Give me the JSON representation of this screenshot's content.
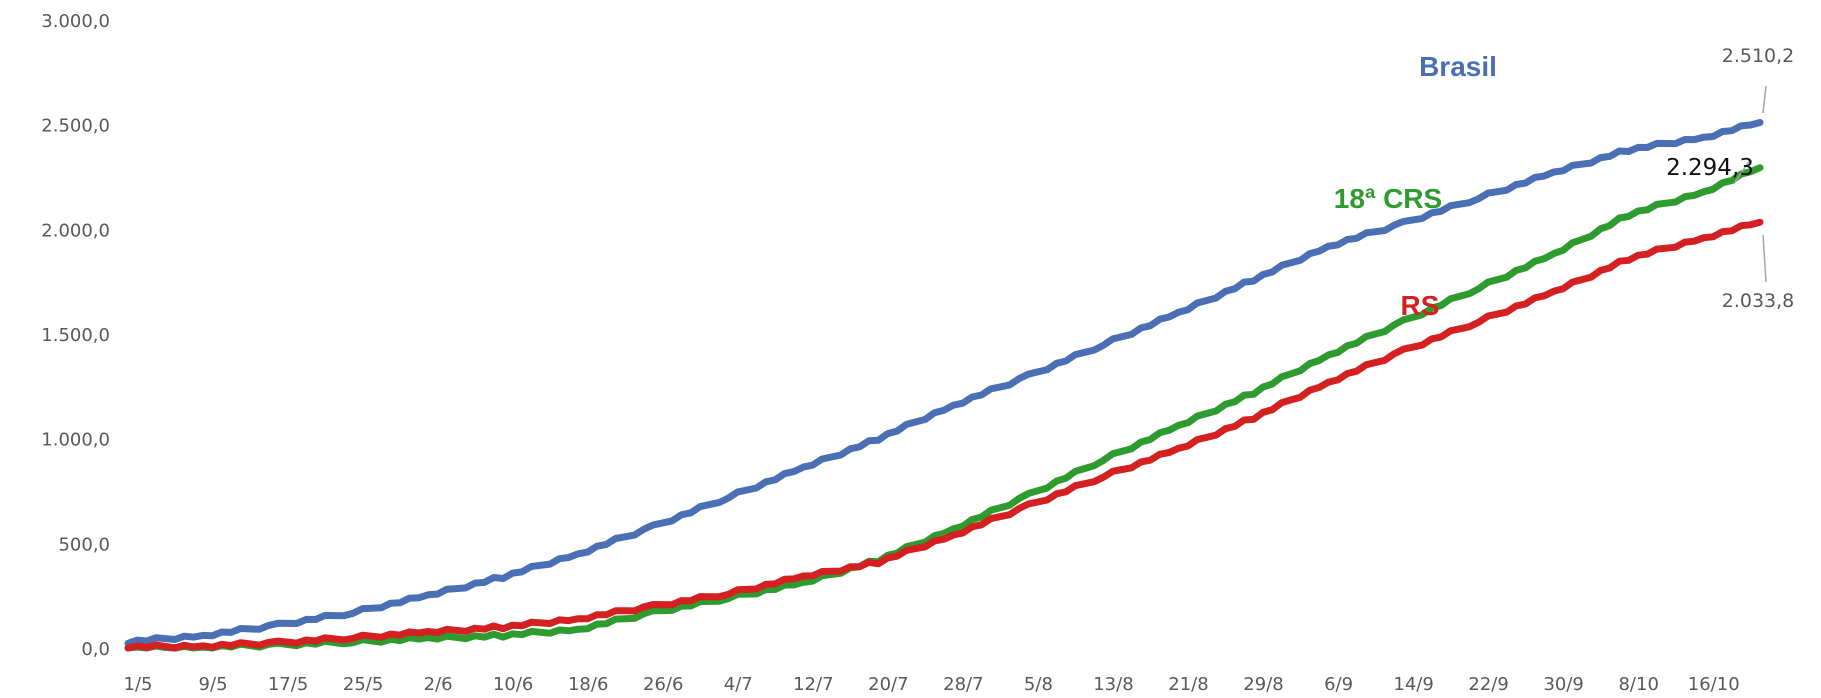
{
  "chart_data": {
    "type": "line",
    "title": "",
    "xlabel": "",
    "ylabel": "",
    "ylim": [
      0,
      3000
    ],
    "y_ticks": [
      "0,0",
      "500,0",
      "1.000,0",
      "1.500,0",
      "2.000,0",
      "2.500,0",
      "3.000,0"
    ],
    "x_ticks": [
      "1/5",
      "9/5",
      "17/5",
      "25/5",
      "2/6",
      "10/6",
      "18/6",
      "26/6",
      "4/7",
      "12/7",
      "20/7",
      "28/7",
      "5/8",
      "13/8",
      "21/8",
      "29/8",
      "6/9",
      "14/9",
      "22/9",
      "30/9",
      "8/10",
      "16/10"
    ],
    "x_days_after_start": [
      0,
      8,
      16,
      24,
      32,
      40,
      48,
      56,
      64,
      72,
      80,
      88,
      96,
      104,
      112,
      120,
      128,
      136,
      144,
      152,
      160,
      168
    ],
    "grid": false,
    "legend": "none",
    "series": [
      {
        "name": "Brasil",
        "color": "#4a6fb5",
        "end_label": "2.510,2",
        "points": [
          [
            0,
            30
          ],
          [
            8,
            60
          ],
          [
            16,
            110
          ],
          [
            24,
            170
          ],
          [
            32,
            250
          ],
          [
            40,
            340
          ],
          [
            48,
            450
          ],
          [
            56,
            580
          ],
          [
            64,
            720
          ],
          [
            72,
            860
          ],
          [
            80,
            1000
          ],
          [
            88,
            1160
          ],
          [
            96,
            1300
          ],
          [
            104,
            1450
          ],
          [
            112,
            1600
          ],
          [
            120,
            1760
          ],
          [
            128,
            1920
          ],
          [
            136,
            2030
          ],
          [
            144,
            2150
          ],
          [
            152,
            2270
          ],
          [
            160,
            2380
          ],
          [
            168,
            2440
          ],
          [
            174,
            2510.2
          ]
        ]
      },
      {
        "name": "18ª CRS",
        "color": "#2e9b2e",
        "end_label": "2.294,3",
        "points": [
          [
            0,
            0
          ],
          [
            8,
            5
          ],
          [
            16,
            15
          ],
          [
            24,
            30
          ],
          [
            32,
            45
          ],
          [
            40,
            60
          ],
          [
            48,
            90
          ],
          [
            56,
            170
          ],
          [
            64,
            240
          ],
          [
            72,
            310
          ],
          [
            80,
            420
          ],
          [
            88,
            570
          ],
          [
            96,
            730
          ],
          [
            104,
            900
          ],
          [
            112,
            1060
          ],
          [
            120,
            1220
          ],
          [
            128,
            1400
          ],
          [
            136,
            1560
          ],
          [
            144,
            1720
          ],
          [
            152,
            1880
          ],
          [
            160,
            2070
          ],
          [
            168,
            2180
          ],
          [
            174,
            2294.3
          ]
        ]
      },
      {
        "name": "RS",
        "color": "#d42020",
        "end_label": "2.033,8",
        "points": [
          [
            0,
            5
          ],
          [
            8,
            10
          ],
          [
            16,
            25
          ],
          [
            24,
            50
          ],
          [
            32,
            75
          ],
          [
            40,
            100
          ],
          [
            48,
            140
          ],
          [
            56,
            200
          ],
          [
            64,
            260
          ],
          [
            72,
            340
          ],
          [
            80,
            410
          ],
          [
            88,
            540
          ],
          [
            96,
            680
          ],
          [
            104,
            820
          ],
          [
            112,
            950
          ],
          [
            120,
            1100
          ],
          [
            128,
            1270
          ],
          [
            136,
            1420
          ],
          [
            144,
            1560
          ],
          [
            152,
            1700
          ],
          [
            160,
            1860
          ],
          [
            168,
            1960
          ],
          [
            174,
            2033.8
          ]
        ]
      }
    ]
  }
}
